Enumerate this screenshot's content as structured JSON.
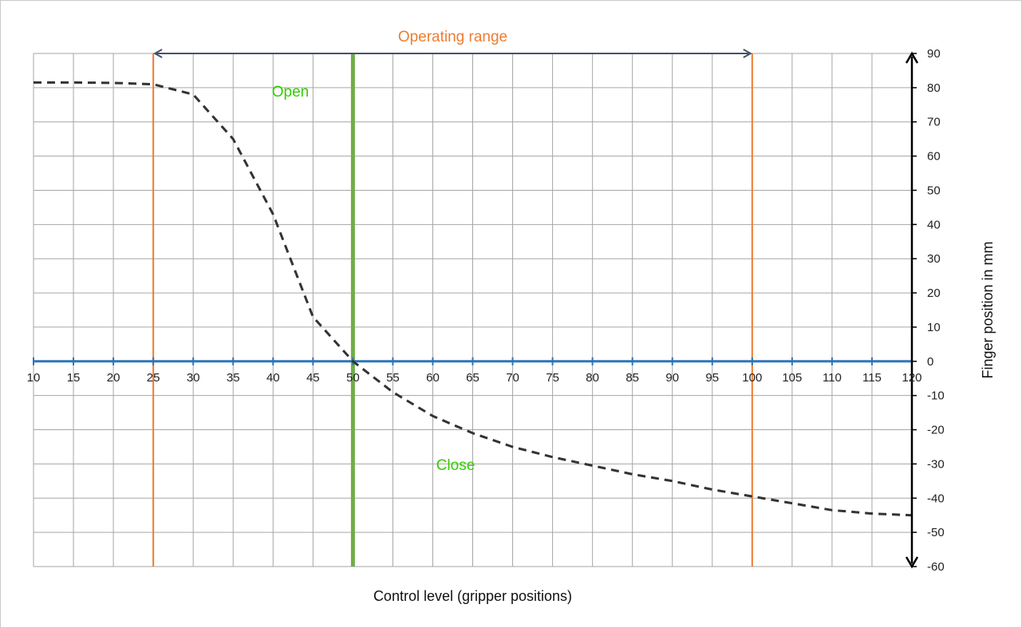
{
  "chart_data": {
    "type": "line",
    "title": "",
    "xlabel": "Control level (gripper positions)",
    "ylabel": "Finger position in mm",
    "xlim": [
      10,
      120
    ],
    "ylim": [
      -60,
      90
    ],
    "x_ticks": [
      "10",
      "15",
      "20",
      "25",
      "30",
      "35",
      "40",
      "45",
      "50",
      "55",
      "60",
      "65",
      "70",
      "75",
      "80",
      "85",
      "90",
      "95",
      "100",
      "105",
      "110",
      "115",
      "120"
    ],
    "y_ticks": [
      "90",
      "80",
      "70",
      "60",
      "50",
      "40",
      "30",
      "20",
      "10",
      "0",
      "-10",
      "-20",
      "-30",
      "-40",
      "-50",
      "-60"
    ],
    "grid": true,
    "series": [
      {
        "style": "dashed",
        "color": "#333333",
        "x": [
          10,
          15,
          20,
          25,
          30,
          35,
          40,
          45,
          50,
          55,
          60,
          65,
          70,
          75,
          80,
          85,
          90,
          95,
          100,
          105,
          110,
          115,
          120
        ],
        "y": [
          81.5,
          81.5,
          81.4,
          81,
          78,
          65,
          43,
          13,
          0,
          -9,
          -16,
          -21,
          -25,
          -28,
          -30.5,
          -33,
          -35,
          -37.5,
          -39.5,
          -41.5,
          -43.5,
          -44.5,
          -45
        ]
      }
    ],
    "reference_lines": [
      {
        "x": 25,
        "color": "#ed7d31"
      },
      {
        "x": 100,
        "color": "#ed7d31"
      },
      {
        "x": 50,
        "color": "#70ad47"
      }
    ],
    "annotations": {
      "operating_range": {
        "text": "Operating range",
        "color": "#ed7d31",
        "from": 25,
        "to": 100
      },
      "open": {
        "text": "Open",
        "color": "#33cc00"
      },
      "close": {
        "text": "Close",
        "color": "#33cc00"
      }
    },
    "colors": {
      "zero_axis": "#2e75b6",
      "grid": "#a6a6a6",
      "range_arrow": "#44546a",
      "y_axis_arrow": "#000000"
    }
  }
}
